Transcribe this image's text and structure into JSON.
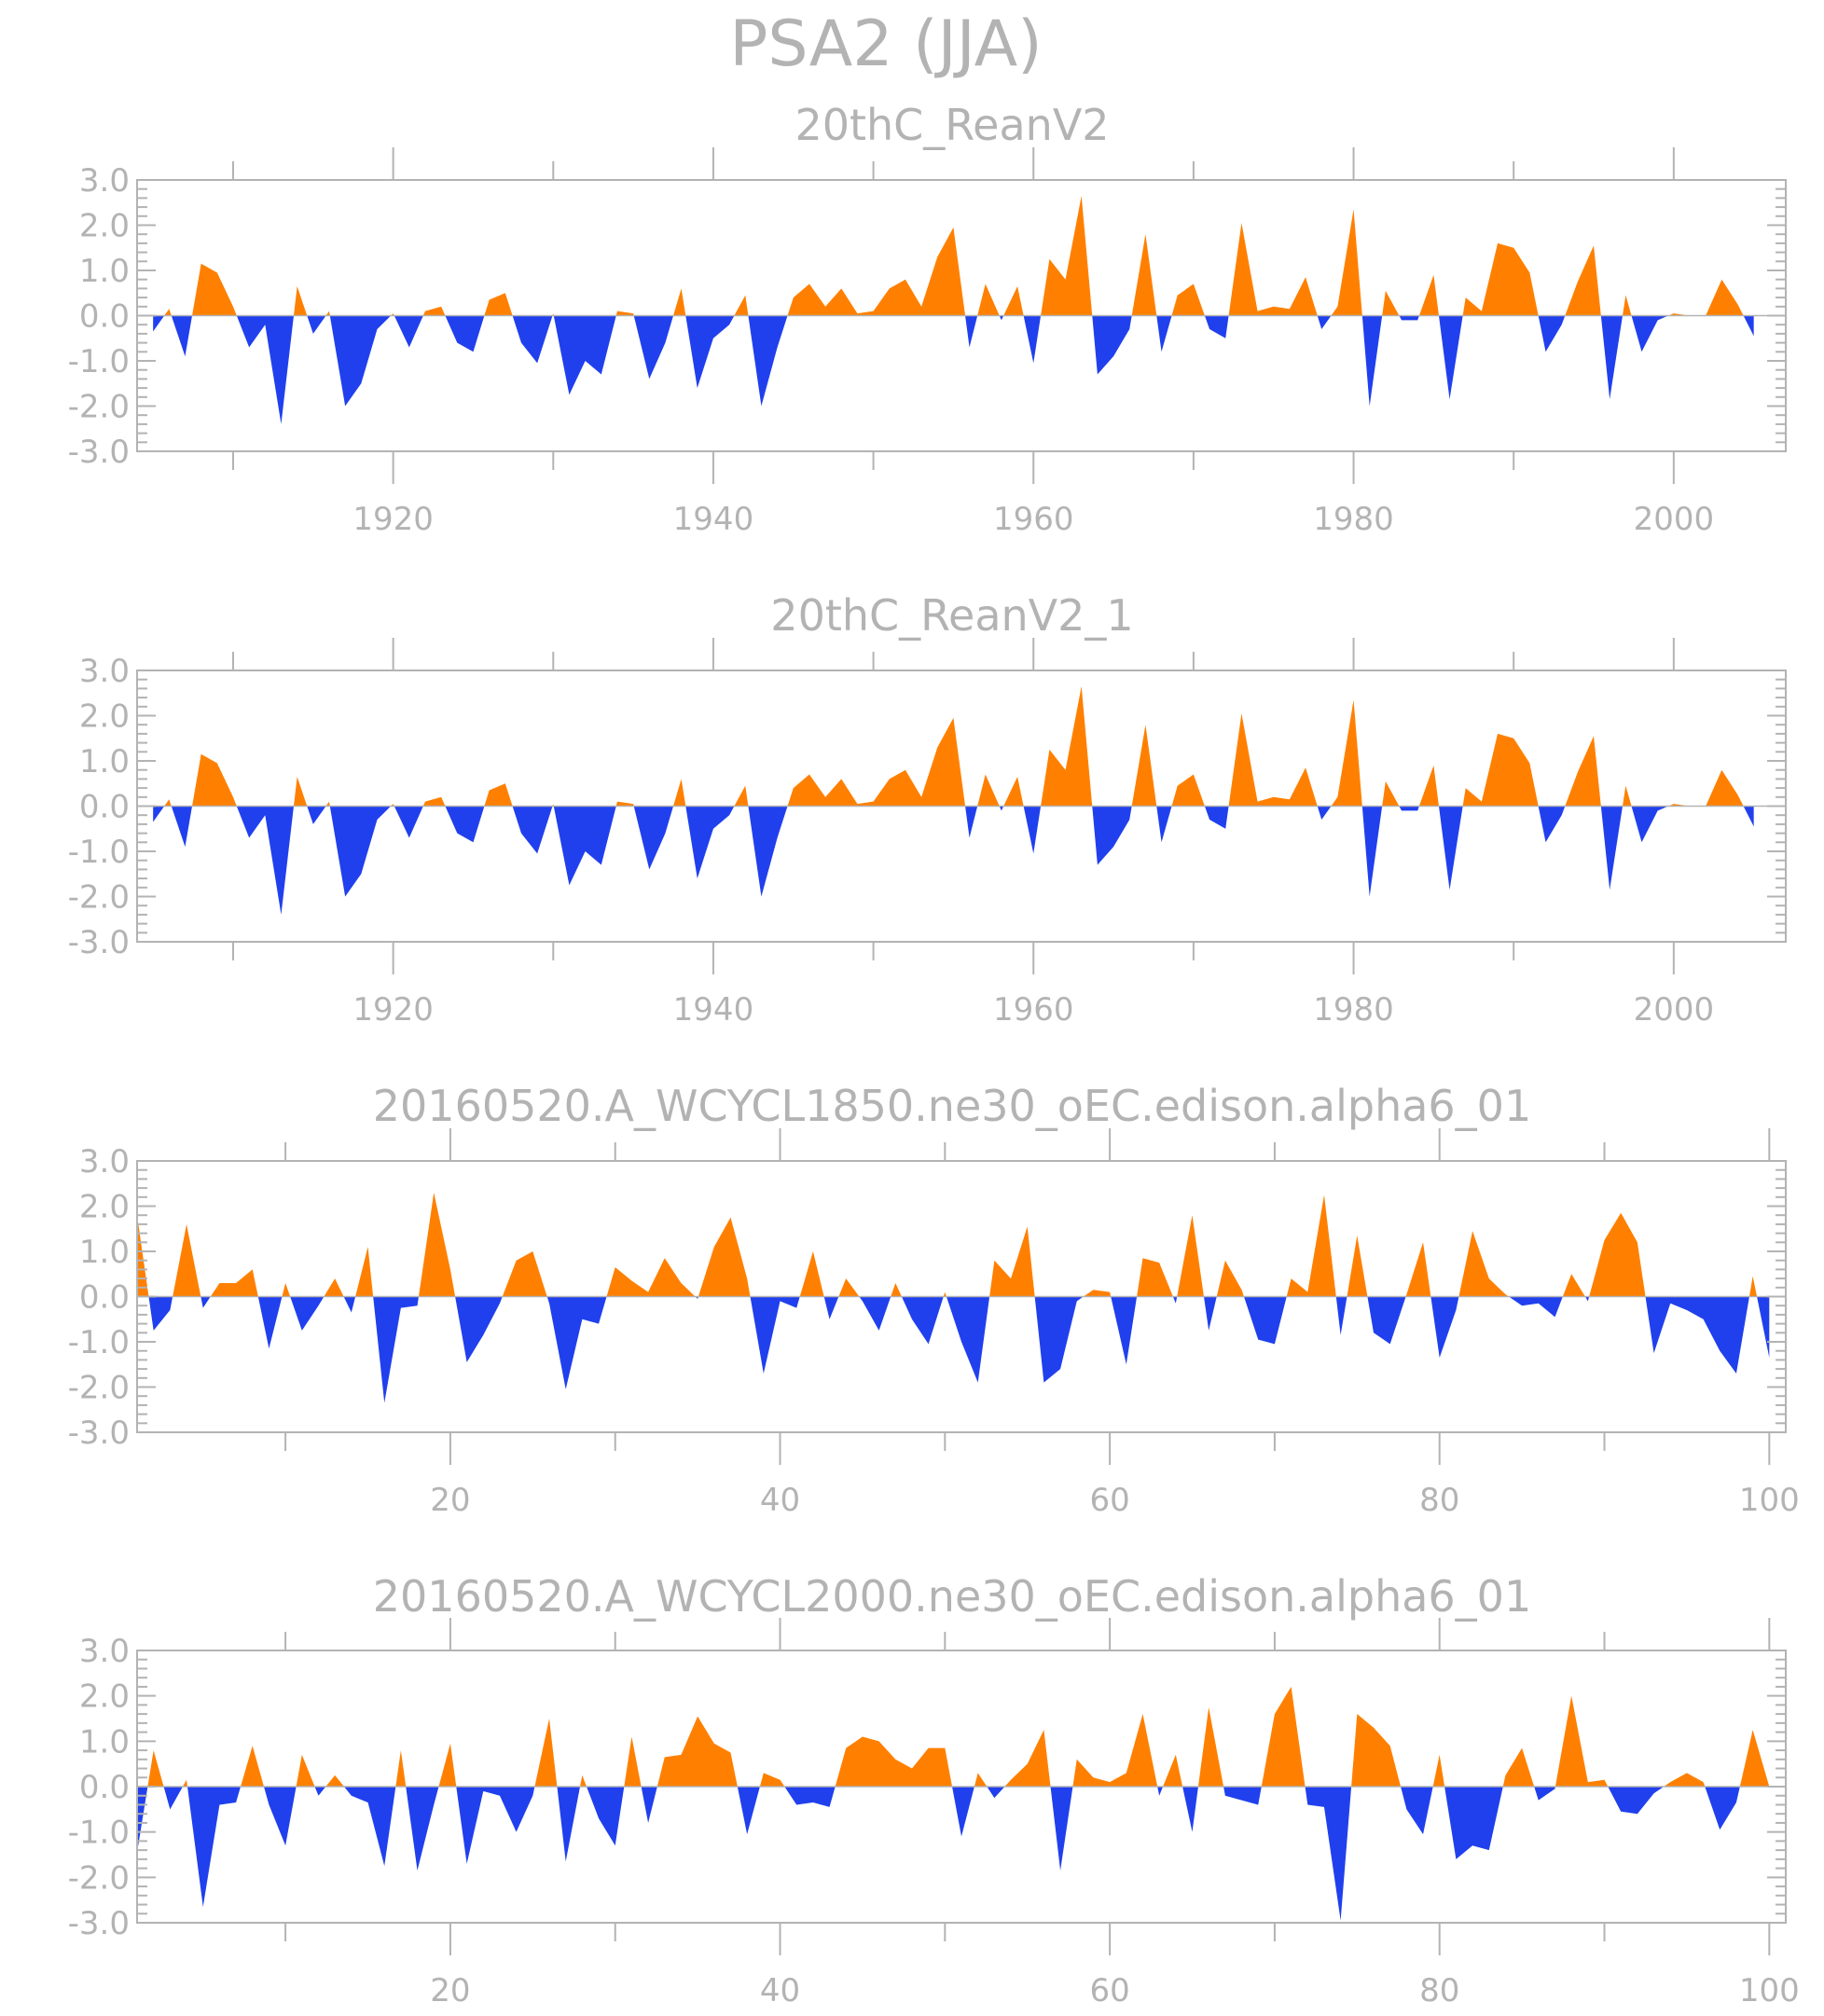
{
  "title": "PSA2 (JJA)",
  "colors": {
    "positive": "#ff8000",
    "negative": "#2040ee",
    "axis": "#b3b3b3"
  },
  "chart_data": [
    {
      "type": "area",
      "title": "20thC_ReanV2",
      "ylim": [
        -3,
        3
      ],
      "yticks": [
        3,
        2,
        1,
        0,
        -1,
        -2,
        -3
      ],
      "ytick_labels": [
        "3.0",
        "2.0",
        "1.0",
        "0.0",
        "-1.0",
        "-2.0",
        "-3.0"
      ],
      "xlim": [
        1904,
        2007
      ],
      "xticks": [
        1920,
        1940,
        1960,
        1980,
        2000
      ],
      "xtick_labels": [
        "1920",
        "1940",
        "1960",
        "1980",
        "2000"
      ],
      "x_start": 1905,
      "values": [
        -0.35,
        0.15,
        -0.9,
        1.15,
        0.95,
        0.2,
        -0.7,
        -0.2,
        -2.4,
        0.65,
        -0.4,
        0.1,
        -2.0,
        -1.5,
        -0.3,
        0.05,
        -0.7,
        0.1,
        0.2,
        -0.6,
        -0.8,
        0.35,
        0.5,
        -0.6,
        -1.05,
        0.05,
        -1.75,
        -1.0,
        -1.3,
        0.1,
        0.05,
        -1.4,
        -0.6,
        0.6,
        -1.6,
        -0.5,
        -0.2,
        0.45,
        -2.0,
        -0.7,
        0.4,
        0.7,
        0.2,
        0.6,
        0.05,
        0.1,
        0.6,
        0.8,
        0.2,
        1.3,
        1.95,
        -0.7,
        0.7,
        -0.1,
        0.65,
        -1.05,
        1.25,
        0.8,
        2.65,
        -1.3,
        -0.9,
        -0.3,
        1.8,
        -0.8,
        0.45,
        0.7,
        -0.3,
        -0.5,
        2.05,
        0.1,
        0.2,
        0.15,
        0.85,
        -0.3,
        0.2,
        2.35,
        -2.0,
        0.55,
        -0.1,
        -0.1,
        0.9,
        -1.85,
        0.4,
        0.1,
        1.6,
        1.5,
        0.95,
        -0.8,
        -0.2,
        0.75,
        1.55,
        -1.85,
        0.45,
        -0.8,
        -0.1,
        0.05,
        0.0,
        0.0,
        0.8,
        0.25,
        -0.45
      ]
    },
    {
      "type": "area",
      "title": "20thC_ReanV2_1",
      "ylim": [
        -3,
        3
      ],
      "yticks": [
        3,
        2,
        1,
        0,
        -1,
        -2,
        -3
      ],
      "ytick_labels": [
        "3.0",
        "2.0",
        "1.0",
        "0.0",
        "-1.0",
        "-2.0",
        "-3.0"
      ],
      "xlim": [
        1904,
        2007
      ],
      "xticks": [
        1920,
        1940,
        1960,
        1980,
        2000
      ],
      "xtick_labels": [
        "1920",
        "1940",
        "1960",
        "1980",
        "2000"
      ],
      "x_start": 1905,
      "values": [
        -0.35,
        0.15,
        -0.9,
        1.15,
        0.95,
        0.2,
        -0.7,
        -0.2,
        -2.4,
        0.65,
        -0.4,
        0.1,
        -2.0,
        -1.5,
        -0.3,
        0.05,
        -0.7,
        0.1,
        0.2,
        -0.6,
        -0.8,
        0.35,
        0.5,
        -0.6,
        -1.05,
        0.05,
        -1.75,
        -1.0,
        -1.3,
        0.1,
        0.05,
        -1.4,
        -0.6,
        0.6,
        -1.6,
        -0.5,
        -0.2,
        0.45,
        -2.0,
        -0.7,
        0.4,
        0.7,
        0.2,
        0.6,
        0.05,
        0.1,
        0.6,
        0.8,
        0.2,
        1.3,
        1.95,
        -0.7,
        0.7,
        -0.1,
        0.65,
        -1.05,
        1.25,
        0.8,
        2.65,
        -1.3,
        -0.9,
        -0.3,
        1.8,
        -0.8,
        0.45,
        0.7,
        -0.3,
        -0.5,
        2.05,
        0.1,
        0.2,
        0.15,
        0.85,
        -0.3,
        0.2,
        2.35,
        -2.0,
        0.55,
        -0.1,
        -0.1,
        0.9,
        -1.85,
        0.4,
        0.1,
        1.6,
        1.5,
        0.95,
        -0.8,
        -0.2,
        0.75,
        1.55,
        -1.85,
        0.45,
        -0.8,
        -0.1,
        0.05,
        0.0,
        0.0,
        0.8,
        0.25,
        -0.45
      ]
    },
    {
      "type": "area",
      "title": "20160520.A_WCYCL1850.ne30_oEC.edison.alpha6_01",
      "ylim": [
        -3,
        3
      ],
      "yticks": [
        3,
        2,
        1,
        0,
        -1,
        -2,
        -3
      ],
      "ytick_labels": [
        "3.0",
        "2.0",
        "1.0",
        "0.0",
        "-1.0",
        "-2.0",
        "-3.0"
      ],
      "xlim": [
        1,
        101
      ],
      "xticks": [
        20,
        40,
        60,
        80,
        100
      ],
      "xtick_labels": [
        "20",
        "40",
        "60",
        "80",
        "100"
      ],
      "x_start": 1,
      "values": [
        1.8,
        -0.75,
        -0.3,
        1.6,
        -0.25,
        0.3,
        0.3,
        0.6,
        -1.15,
        0.3,
        -0.75,
        -0.2,
        0.4,
        -0.35,
        1.1,
        -2.35,
        -0.25,
        -0.2,
        2.3,
        0.6,
        -1.45,
        -0.85,
        -0.15,
        0.8,
        1.0,
        -0.15,
        -2.05,
        -0.5,
        -0.6,
        0.65,
        0.35,
        0.1,
        0.85,
        0.3,
        -0.05,
        1.1,
        1.75,
        0.4,
        -1.7,
        -0.1,
        -0.25,
        1.0,
        -0.5,
        0.4,
        -0.1,
        -0.75,
        0.3,
        -0.5,
        -1.05,
        0.1,
        -1.0,
        -1.9,
        0.8,
        0.4,
        1.55,
        -1.9,
        -1.6,
        -0.1,
        0.15,
        0.1,
        -1.5,
        0.85,
        0.75,
        -0.15,
        1.8,
        -0.75,
        0.8,
        0.15,
        -0.95,
        -1.05,
        0.4,
        0.1,
        2.25,
        -0.85,
        1.35,
        -0.8,
        -1.05,
        0.05,
        1.2,
        -1.35,
        -0.3,
        1.45,
        0.4,
        0.05,
        -0.2,
        -0.15,
        -0.45,
        0.5,
        -0.1,
        1.25,
        1.85,
        1.2,
        -1.25,
        -0.15,
        -0.3,
        -0.5,
        -1.2,
        -1.7,
        0.45,
        -1.35
      ]
    },
    {
      "type": "area",
      "title": "20160520.A_WCYCL2000.ne30_oEC.edison.alpha6_01",
      "ylim": [
        -3,
        3
      ],
      "yticks": [
        3,
        2,
        1,
        0,
        -1,
        -2,
        -3
      ],
      "ytick_labels": [
        "3.0",
        "2.0",
        "1.0",
        "0.0",
        "-1.0",
        "-2.0",
        "-3.0"
      ],
      "xlim": [
        1,
        101
      ],
      "xticks": [
        20,
        40,
        60,
        80,
        100
      ],
      "xtick_labels": [
        "20",
        "40",
        "60",
        "80",
        "100"
      ],
      "x_start": 1,
      "values": [
        -1.45,
        0.8,
        -0.5,
        0.15,
        -2.65,
        -0.4,
        -0.35,
        0.9,
        -0.4,
        -1.3,
        0.7,
        -0.2,
        0.25,
        -0.2,
        -0.35,
        -1.75,
        0.8,
        -1.85,
        -0.4,
        0.95,
        -1.7,
        -0.1,
        -0.2,
        -1.0,
        -0.2,
        1.5,
        -1.65,
        0.25,
        -0.7,
        -1.3,
        1.1,
        -0.8,
        0.65,
        0.7,
        1.55,
        0.95,
        0.75,
        -1.05,
        0.3,
        0.15,
        -0.4,
        -0.35,
        -0.45,
        0.85,
        1.1,
        1.0,
        0.6,
        0.4,
        0.85,
        0.85,
        -1.1,
        0.3,
        -0.25,
        0.15,
        0.5,
        1.25,
        -1.85,
        0.6,
        0.2,
        0.1,
        0.3,
        1.6,
        -0.2,
        0.7,
        -1.0,
        1.75,
        -0.2,
        -0.3,
        -0.4,
        1.6,
        2.2,
        -0.4,
        -0.45,
        -2.95,
        1.6,
        1.3,
        0.9,
        -0.5,
        -1.05,
        0.7,
        -1.6,
        -1.3,
        -1.4,
        0.25,
        0.85,
        -0.3,
        -0.05,
        2.0,
        0.1,
        0.15,
        -0.55,
        -0.6,
        -0.15,
        0.1,
        0.3,
        0.1,
        -0.95,
        -0.35,
        1.25,
        0.0
      ]
    }
  ]
}
